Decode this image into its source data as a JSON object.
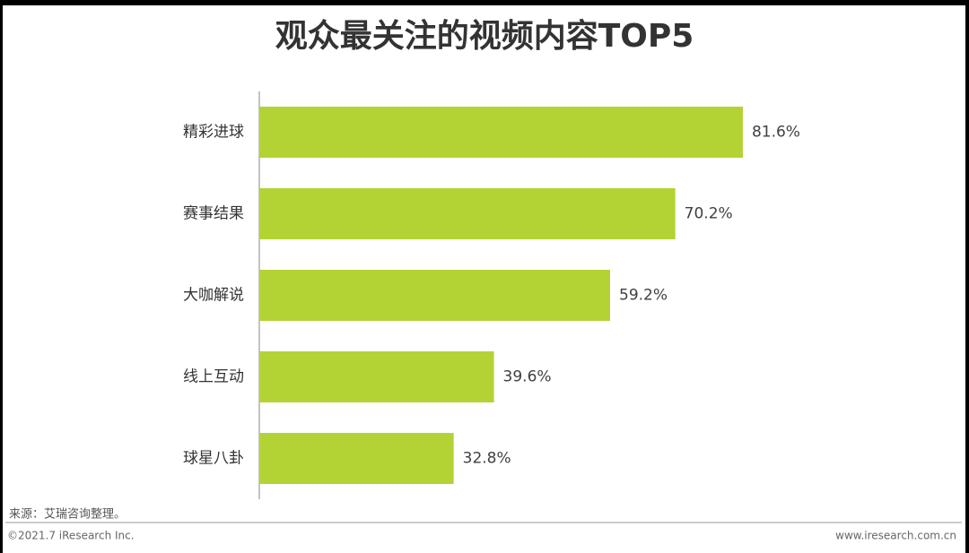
{
  "chart_data": {
    "type": "hbar",
    "title": "观众最关注的视频内容TOP5",
    "categories": [
      "精彩进球",
      "赛事结果",
      "大咖解说",
      "线上互动",
      "球星八卦"
    ],
    "values": [
      81.6,
      70.2,
      59.2,
      39.6,
      32.8
    ],
    "value_labels": [
      "81.6%",
      "70.2%",
      "59.2%",
      "39.6%",
      "32.8%"
    ],
    "color": "#b3d334"
  },
  "source": "来源：艾瑞咨询整理。",
  "footer": {
    "copyright": "©2021.7 iResearch Inc.",
    "website": "www.iresearch.com.cn"
  }
}
